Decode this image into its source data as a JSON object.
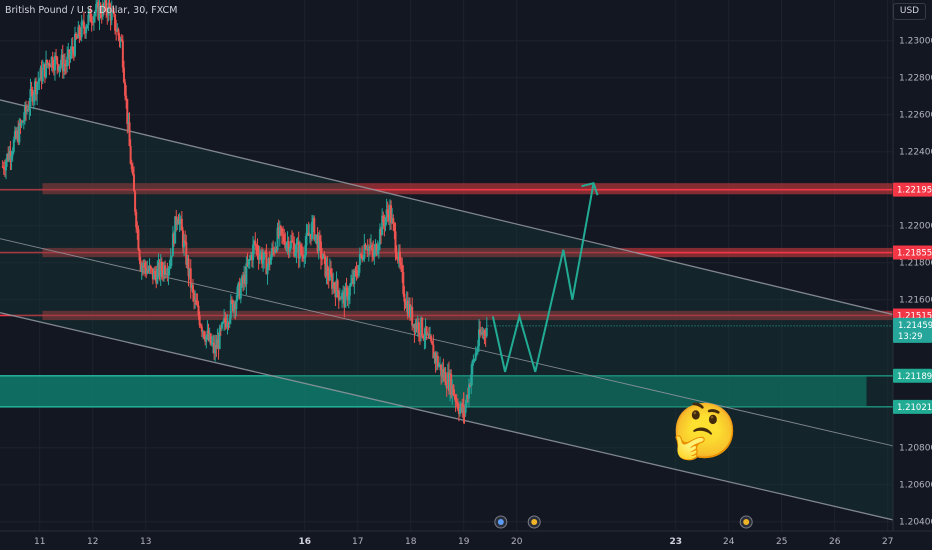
{
  "title": "British Pound / U.S. Dollar, 30, FXCM",
  "currency": "USD",
  "colors": {
    "background": "#131722",
    "bull": "#26a69a",
    "bear": "#ef5350",
    "resistance_fill": "#b2353a",
    "support_fill": "#0f8a77",
    "line_red": "#f23645",
    "line_teal": "#22ab94",
    "channel": "#9598a1"
  },
  "price_scale": {
    "ticks": [
      "1.23000",
      "1.22800",
      "1.22600",
      "1.22400",
      "1.22000",
      "1.21800",
      "1.21600",
      "1.20800",
      "1.20600",
      "1.20400"
    ]
  },
  "badges": [
    {
      "label": "1.22195",
      "kind": "resistance"
    },
    {
      "label": "1.21855",
      "kind": "resistance"
    },
    {
      "label": "1.21515",
      "kind": "resistance"
    },
    {
      "label": "1.21459",
      "sublabel": "13:29",
      "kind": "last"
    },
    {
      "label": "1.21189",
      "kind": "support"
    },
    {
      "label": "1.21021",
      "kind": "support"
    }
  ],
  "time_axis": {
    "labels": [
      {
        "text": "11",
        "bold": false
      },
      {
        "text": "12",
        "bold": false
      },
      {
        "text": "13",
        "bold": false
      },
      {
        "text": "16",
        "bold": true
      },
      {
        "text": "17",
        "bold": false
      },
      {
        "text": "18",
        "bold": false
      },
      {
        "text": "19",
        "bold": false
      },
      {
        "text": "20",
        "bold": false
      },
      {
        "text": "23",
        "bold": true
      },
      {
        "text": "24",
        "bold": false
      },
      {
        "text": "25",
        "bold": false
      },
      {
        "text": "26",
        "bold": false
      },
      {
        "text": "27",
        "bold": false
      }
    ]
  },
  "event_markers": [
    "flag-icon",
    "event-icon",
    "event-icon"
  ],
  "emoji": "🤔",
  "chart_data": {
    "type": "candlestick",
    "title": "British Pound / U.S. Dollar, 30, FXCM",
    "x_unit": "day of month",
    "ylim": [
      1.2035,
      1.2322
    ],
    "xlim": [
      10.25,
      27.1
    ],
    "last_price": 1.21459,
    "countdown": "13:29",
    "price_path": [
      [
        10.3,
        1.2232
      ],
      [
        10.6,
        1.225
      ],
      [
        10.9,
        1.2275
      ],
      [
        11.2,
        1.229
      ],
      [
        11.5,
        1.2287
      ],
      [
        11.75,
        1.2304
      ],
      [
        12.0,
        1.2315
      ],
      [
        12.3,
        1.2318
      ],
      [
        12.55,
        1.2298
      ],
      [
        12.7,
        1.224
      ],
      [
        12.9,
        1.218
      ],
      [
        13.15,
        1.2173
      ],
      [
        13.45,
        1.218
      ],
      [
        13.6,
        1.2208
      ],
      [
        13.75,
        1.2185
      ],
      [
        13.9,
        1.216
      ],
      [
        14.1,
        1.2143
      ],
      [
        14.3,
        1.2132
      ],
      [
        14.55,
        1.2152
      ],
      [
        14.85,
        1.217
      ],
      [
        15.05,
        1.219
      ],
      [
        15.3,
        1.2178
      ],
      [
        15.5,
        1.2195
      ],
      [
        15.75,
        1.219
      ],
      [
        15.95,
        1.2185
      ],
      [
        16.15,
        1.22
      ],
      [
        16.4,
        1.2176
      ],
      [
        16.55,
        1.2168
      ],
      [
        16.75,
        1.216
      ],
      [
        16.95,
        1.2172
      ],
      [
        17.15,
        1.2192
      ],
      [
        17.3,
        1.2183
      ],
      [
        17.45,
        1.22
      ],
      [
        17.6,
        1.2209
      ],
      [
        17.75,
        1.2185
      ],
      [
        17.9,
        1.216
      ],
      [
        18.05,
        1.2148
      ],
      [
        18.2,
        1.2145
      ],
      [
        18.45,
        1.213
      ],
      [
        18.6,
        1.212
      ],
      [
        18.75,
        1.2115
      ],
      [
        18.9,
        1.2103
      ],
      [
        19.0,
        1.2098
      ],
      [
        19.15,
        1.2122
      ],
      [
        19.3,
        1.214
      ],
      [
        19.45,
        1.21459
      ]
    ],
    "candle_seed": 7,
    "resistance_zones": [
      {
        "low": 1.2217,
        "high": 1.2223,
        "line": 1.22195,
        "from_x": 10.25,
        "to_x": 27.1
      },
      {
        "low": 1.2183,
        "high": 1.2188,
        "line": 1.21855,
        "from_x": 10.25,
        "to_x": 27.1
      },
      {
        "low": 1.2149,
        "high": 1.2154,
        "line": 1.21515,
        "from_x": 10.25,
        "to_x": 27.1
      }
    ],
    "support_zone": {
      "low": 1.21021,
      "high": 1.21189,
      "from_x": 10.25,
      "to_x": 26.6
    },
    "channel": {
      "upper": [
        [
          10.25,
          1.2268
        ],
        [
          27.1,
          1.2152
        ]
      ],
      "middle": [
        [
          10.25,
          1.2193
        ],
        [
          27.1,
          1.2081
        ]
      ],
      "lower": [
        [
          10.25,
          1.2153
        ],
        [
          27.1,
          1.2041
        ]
      ]
    },
    "projection": [
      [
        19.55,
        1.2151
      ],
      [
        19.78,
        1.2121
      ],
      [
        20.05,
        1.2151
      ],
      [
        20.35,
        1.2121
      ],
      [
        20.88,
        1.2187
      ],
      [
        21.05,
        1.216
      ],
      [
        21.45,
        1.2223
      ]
    ]
  }
}
